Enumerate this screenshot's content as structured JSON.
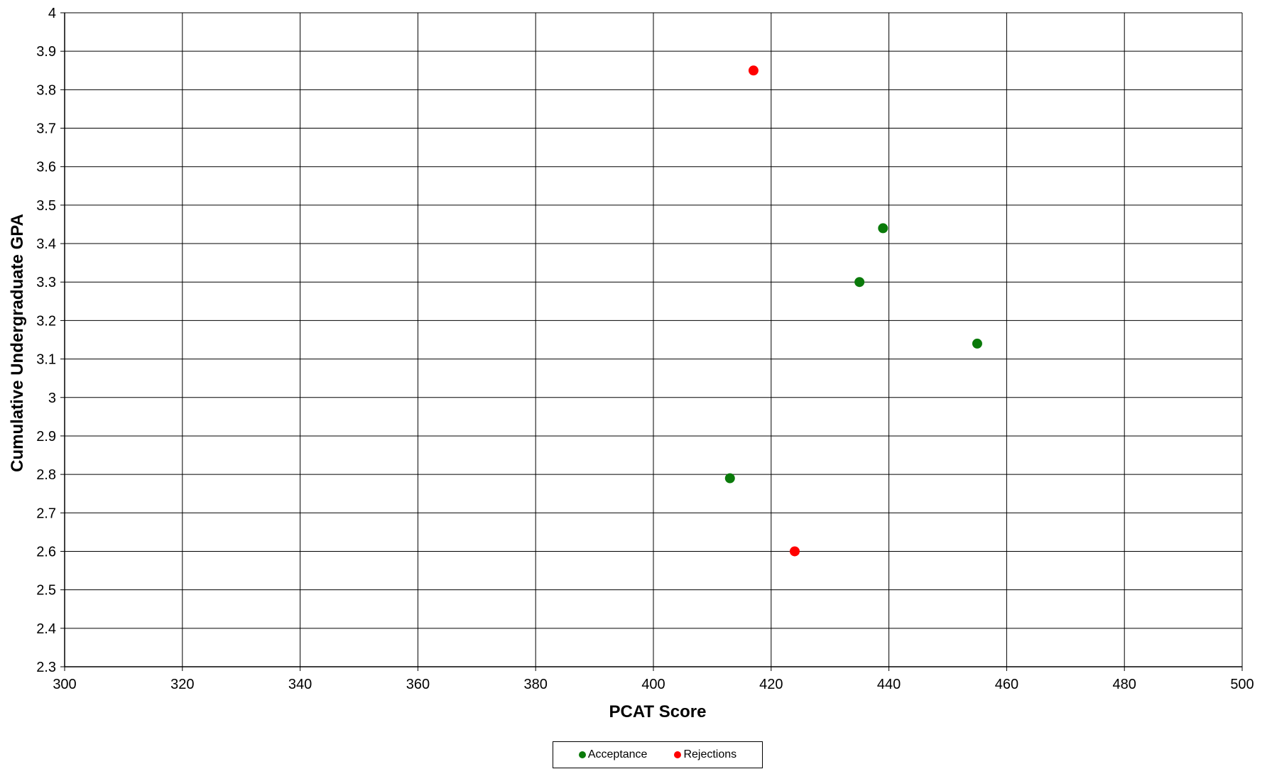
{
  "chart_data": {
    "type": "scatter",
    "xlabel": "PCAT Score",
    "ylabel": "Cumulative Undergraduate GPA",
    "xlim": [
      300,
      500
    ],
    "ylim": [
      2.3,
      4.0
    ],
    "x_ticks": [
      "300",
      "320",
      "340",
      "360",
      "380",
      "400",
      "420",
      "440",
      "460",
      "480",
      "500"
    ],
    "y_ticks": [
      "2.3",
      "2.4",
      "2.5",
      "2.6",
      "2.7",
      "2.8",
      "2.9",
      "3",
      "3.1",
      "3.2",
      "3.3",
      "3.4",
      "3.5",
      "3.6",
      "3.7",
      "3.8",
      "3.9",
      "4"
    ],
    "grid": true,
    "legend_position": "bottom-center",
    "series": [
      {
        "name": "Acceptance",
        "color": "#0a7a0a",
        "points": [
          {
            "x": 413,
            "y": 2.79
          },
          {
            "x": 435,
            "y": 3.3
          },
          {
            "x": 439,
            "y": 3.44
          },
          {
            "x": 455,
            "y": 3.14
          }
        ]
      },
      {
        "name": "Rejections",
        "color": "#ff0000",
        "points": [
          {
            "x": 417,
            "y": 3.85
          },
          {
            "x": 424,
            "y": 2.6
          }
        ]
      }
    ]
  }
}
